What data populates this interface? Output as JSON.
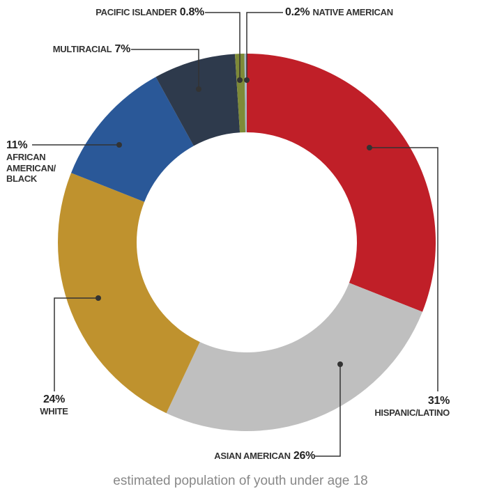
{
  "chart_data": {
    "type": "donut",
    "caption": "estimated population of youth under age 18",
    "categories": [
      "HISPANIC/LATINO",
      "ASIAN AMERICAN",
      "WHITE",
      "AFRICAN AMERICAN/ BLACK",
      "MULTIRACIAL",
      "PACIFIC ISLANDER",
      "NATIVE AMERICAN"
    ],
    "values": [
      31,
      26,
      24,
      11,
      7,
      0.8,
      0.2
    ],
    "value_labels": [
      "31%",
      "26%",
      "24%",
      "11%",
      "7%",
      "0.8%",
      "0.2%"
    ],
    "colors": [
      "#c01f28",
      "#bfbfbf",
      "#bf922e",
      "#2a5898",
      "#2e3a4c",
      "#7e8a38",
      "#a8b8c8"
    ]
  }
}
